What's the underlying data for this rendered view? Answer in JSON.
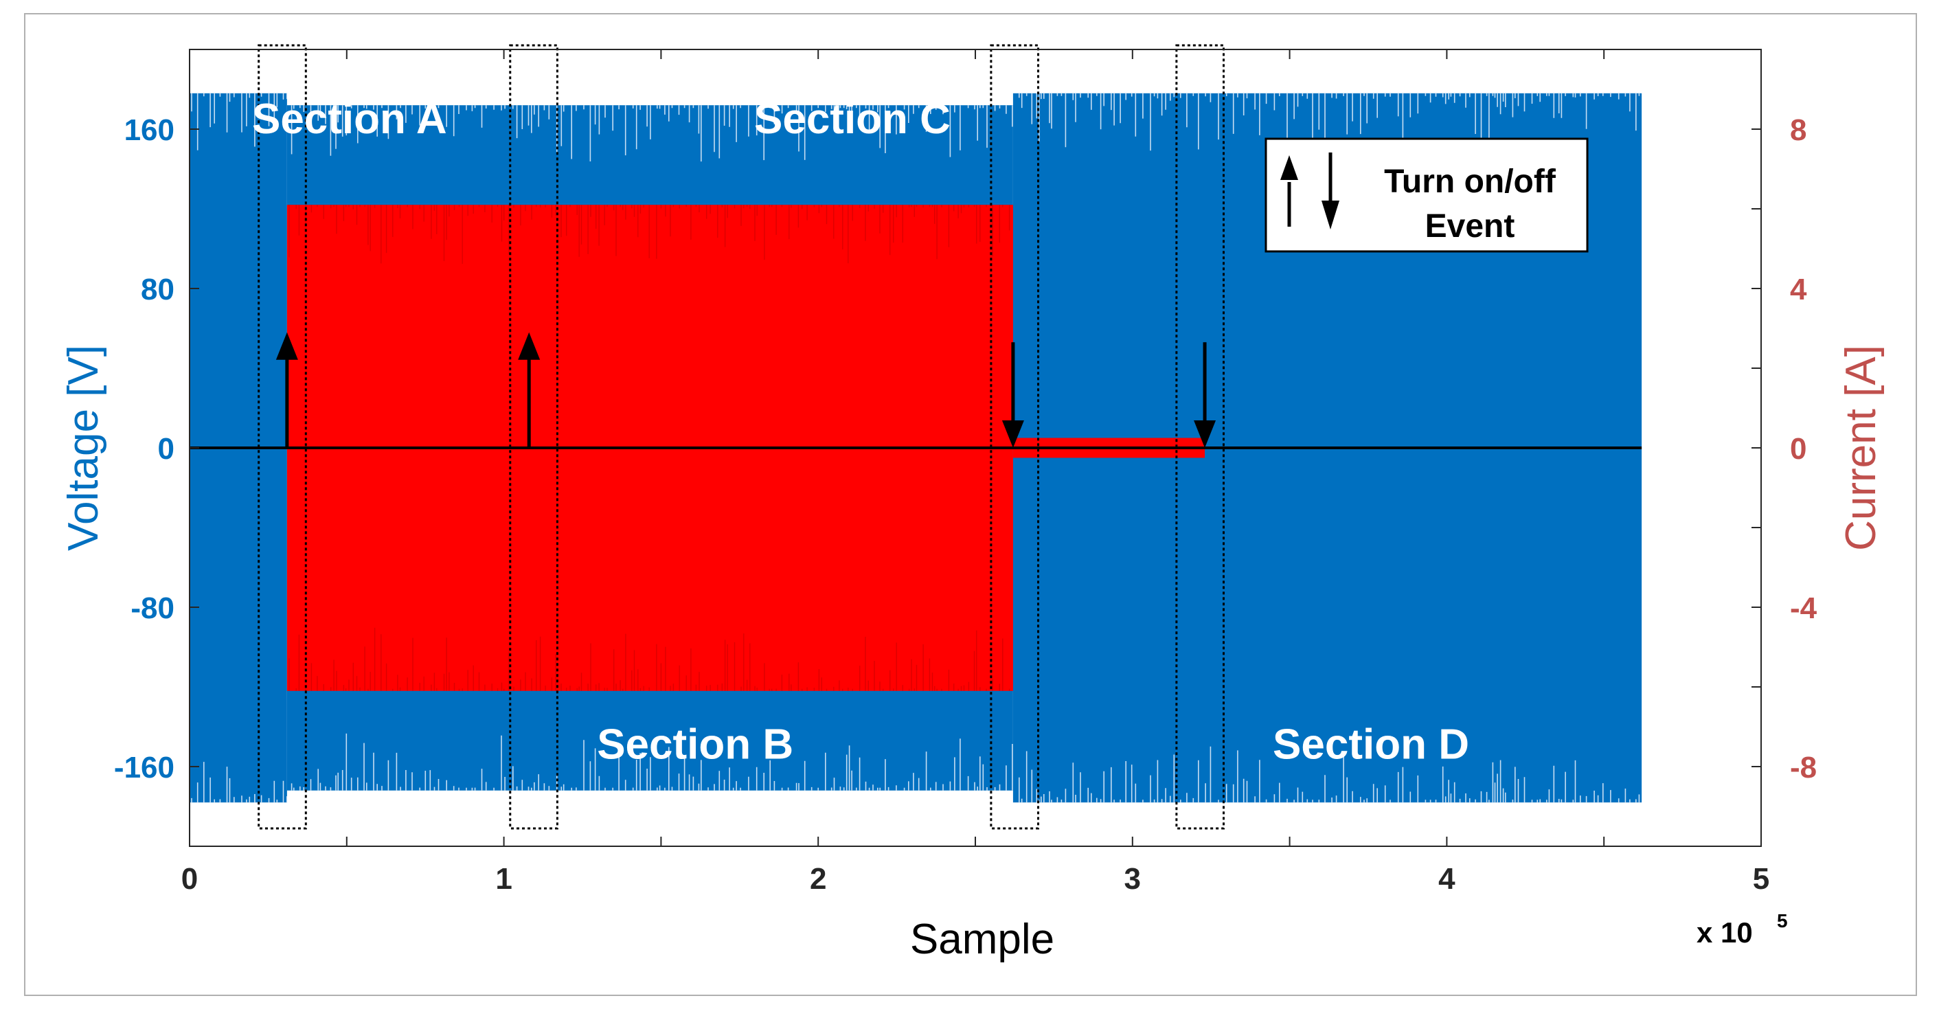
{
  "chart_data": {
    "type": "line",
    "xlabel": "Sample",
    "x_exponent_label": "x 10",
    "x_exponent_sup": "5",
    "xlim": [
      0,
      5
    ],
    "xticks": [
      0,
      1,
      2,
      3,
      4,
      5
    ],
    "xtick_labels": [
      "0",
      "1",
      "2",
      "3",
      "4",
      "5"
    ],
    "x_scale": 100000,
    "y_left": {
      "label": "Voltage [V]",
      "lim": [
        -200,
        200
      ],
      "ticks": [
        -160,
        -80,
        0,
        80,
        160
      ],
      "tick_labels": [
        "-160",
        "-80",
        "0",
        "80",
        "160"
      ]
    },
    "y_right": {
      "label": "Current [A]",
      "lim": [
        -10,
        10
      ],
      "ticks": [
        -8,
        -4,
        0,
        4,
        8
      ],
      "tick_labels": [
        "-8",
        "-4",
        "0",
        "4",
        "8"
      ]
    },
    "series": [
      {
        "name": "Voltage",
        "axis": "left",
        "color": "#0070C0",
        "segments": [
          {
            "x_start": 0.0,
            "x_end": 0.31,
            "amplitude": 178
          },
          {
            "x_start": 0.31,
            "x_end": 2.62,
            "amplitude": 172
          },
          {
            "x_start": 2.62,
            "x_end": 4.62,
            "amplitude": 178
          }
        ]
      },
      {
        "name": "Current",
        "axis": "right",
        "color": "#FF0000",
        "segments": [
          {
            "x_start": 0.31,
            "x_end": 2.62,
            "amplitude": 6.1
          },
          {
            "x_start": 2.62,
            "x_end": 3.23,
            "amplitude": 0.25
          }
        ]
      }
    ],
    "events": [
      {
        "x": 0.31,
        "direction": "up"
      },
      {
        "x": 1.08,
        "direction": "up"
      },
      {
        "x": 2.62,
        "direction": "down"
      },
      {
        "x": 3.23,
        "direction": "down"
      }
    ],
    "event_boxes": [
      {
        "x_start": 0.22,
        "x_end": 0.37
      },
      {
        "x_start": 1.02,
        "x_end": 1.17
      },
      {
        "x_start": 2.55,
        "x_end": 2.7
      },
      {
        "x_start": 3.14,
        "x_end": 3.29
      }
    ],
    "annotations": [
      {
        "text": "Section A",
        "x": 0.5,
        "y": 158
      },
      {
        "text": "Section B",
        "x": 1.6,
        "y": -156
      },
      {
        "text": "Section C",
        "x": 2.1,
        "y": 158
      },
      {
        "text": "Section D",
        "x": 3.75,
        "y": -156
      }
    ],
    "legend": {
      "position": "top-right",
      "line1": "Turn on/off",
      "line2": "Event"
    },
    "colors": {
      "voltage": "#0070C0",
      "current": "#FF0000",
      "left_axis_text": "#0070C0",
      "right_axis_text": "#C0504D",
      "zero_line": "#000000"
    }
  }
}
